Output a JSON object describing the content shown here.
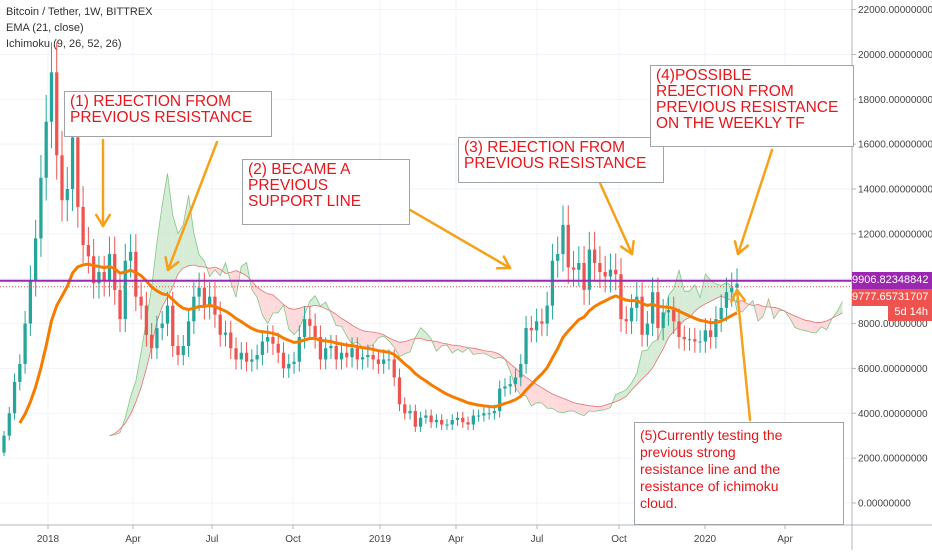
{
  "header": {
    "symbol_line": "Bitcoin / Tether, 1W, BITTREX",
    "ema_line": "EMA (21, close)",
    "ichimoku_line": "Ichimoku (9, 26, 52, 26)"
  },
  "price_tags": {
    "resistance": "9906.82348842",
    "current": "9777.65731707",
    "countdown": "5d 14h"
  },
  "annotations": {
    "a1": "(1) REJECTION FROM\nPREVIOUS RESISTANCE",
    "a2": "(2) BECAME A\nPREVIOUS\nSUPPORT LINE",
    "a3": "(3) REJECTION FROM\nPREVIOUS RESISTANCE",
    "a4": "(4)POSSIBLE\nREJECTION FROM\nPREVIOUS RESISTANCE\nON THE WEEKLY TF",
    "a5": "(5)Currently testing the\nprevious strong\nresistance line and the\nresistance of ichimoku\ncloud."
  },
  "colors": {
    "up": "#26a69a",
    "down": "#ef5350",
    "ema": "#f57c00",
    "resistance_line": "#9c27b0",
    "arrow": "#f7a11a",
    "cloud_bull": "#c8e6c9",
    "cloud_bear": "#ffcdd2",
    "tag_red": "#ef5350",
    "tag_purple": "#9c27b0"
  },
  "chart_data": {
    "type": "candlestick",
    "title": "Bitcoin / Tether, 1W, BITTREX",
    "xlabel": "",
    "ylabel": "",
    "ylim": [
      -1000,
      23000
    ],
    "y_ticks": [
      0,
      2000,
      4000,
      6000,
      8000,
      10000,
      12000,
      14000,
      16000,
      18000,
      20000,
      22000
    ],
    "y_tick_labels": [
      "0.00000000",
      "2000.00000000",
      "4000.00000000",
      "6000.00000000",
      "8000.00000000",
      "10000.00000000",
      "12000.00000000",
      "14000.00000000",
      "16000.00000000",
      "18000.00000000",
      "20000.00000000",
      "22000.00000000"
    ],
    "x_tick_labels": [
      "2018",
      "Apr",
      "Jul",
      "Oct",
      "2019",
      "Apr",
      "Jul",
      "Oct",
      "2020",
      "Apr"
    ],
    "horizontal_line": 9906.82,
    "approximate_close": [
      3000,
      4000,
      5400,
      6200,
      8000,
      9900,
      11800,
      14500,
      17000,
      19200,
      15500,
      13500,
      14000,
      16300,
      13200,
      11500,
      11000,
      9800,
      10300,
      9900,
      11100,
      9500,
      8200,
      10800,
      11200,
      9200,
      8800,
      7500,
      6900,
      7800,
      8000,
      8800,
      7000,
      6600,
      7000,
      8100,
      9200,
      9600,
      8800,
      9200,
      8400,
      7500,
      7600,
      6900,
      6400,
      6700,
      6300,
      6400,
      6600,
      7200,
      7400,
      7100,
      6700,
      6000,
      6200,
      6300,
      7400,
      8200,
      7900,
      7400,
      6400,
      6900,
      7000,
      6400,
      6700,
      6500,
      6900,
      6400,
      6500,
      6600,
      6400,
      6200,
      6400,
      6400,
      5600,
      4400,
      4000,
      4100,
      3400,
      3800,
      3900,
      3600,
      3700,
      3500,
      3500,
      3700,
      3800,
      3600,
      3500,
      3900,
      3900,
      4000,
      4000,
      4100,
      5100,
      5200,
      5300,
      5600,
      6200,
      7800,
      7700,
      8100,
      8000,
      8800,
      10800,
      11100,
      12400,
      10500,
      10400,
      10700,
      9500,
      11300,
      10700,
      10300,
      10100,
      10400,
      10200,
      8200,
      8100,
      8700,
      9200,
      7500,
      8000,
      9400,
      7800,
      8500,
      8600,
      8100,
      7400,
      7300,
      7300,
      7200,
      7200,
      7700,
      7400,
      8200,
      8700,
      9400,
      9600,
      9777
    ]
  }
}
